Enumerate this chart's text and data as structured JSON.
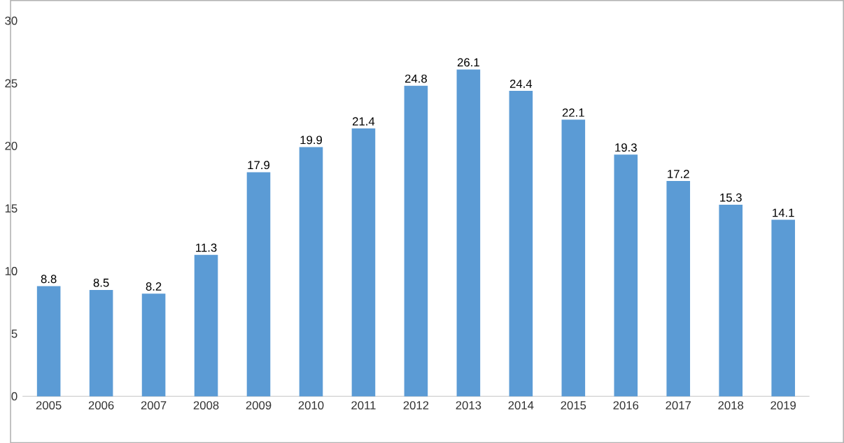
{
  "chart_data": {
    "type": "bar",
    "categories": [
      "2005",
      "2006",
      "2007",
      "2008",
      "2009",
      "2010",
      "2011",
      "2012",
      "2013",
      "2014",
      "2015",
      "2016",
      "2017",
      "2018",
      "2019"
    ],
    "values": [
      8.8,
      8.5,
      8.2,
      11.3,
      17.9,
      19.9,
      21.4,
      24.8,
      26.1,
      24.4,
      22.1,
      19.3,
      17.2,
      15.3,
      14.1
    ],
    "color": "#5b9bd5",
    "ylim": [
      0,
      30
    ],
    "yticks": [
      0,
      5,
      10,
      15,
      20,
      25,
      30
    ],
    "data_labels": true
  }
}
